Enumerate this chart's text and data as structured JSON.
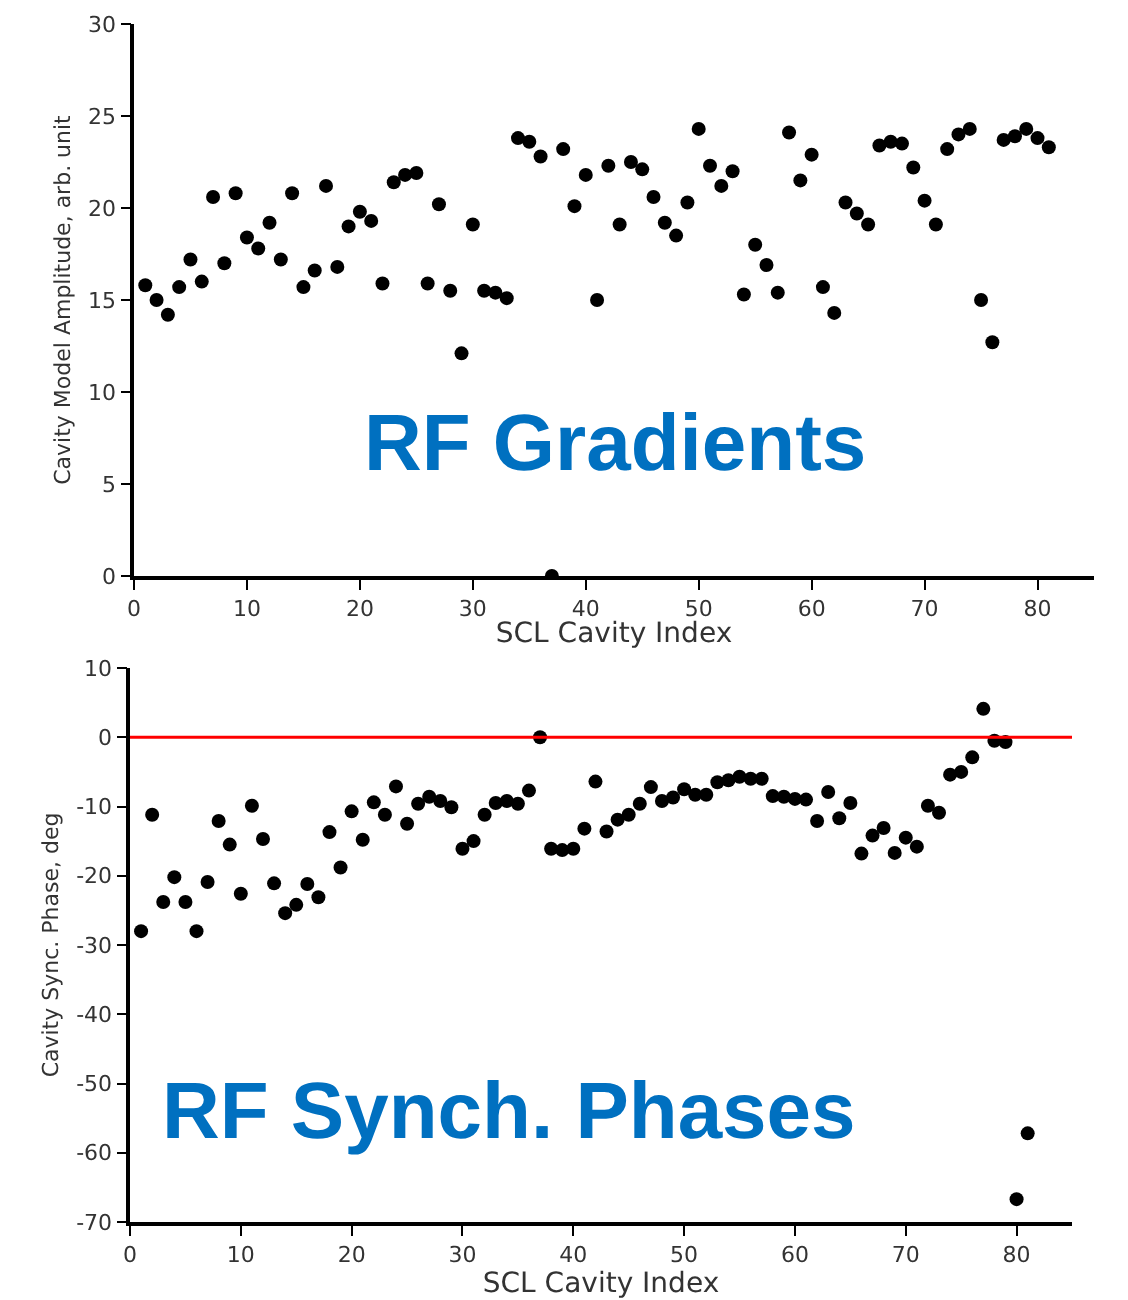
{
  "chart_data": [
    {
      "type": "scatter",
      "xlabel": "SCL Cavity Index",
      "ylabel": "Cavity Model Amplitude, arb. unit",
      "annotations": [
        "RF Gradients"
      ],
      "x": [
        1,
        2,
        3,
        4,
        5,
        6,
        7,
        8,
        9,
        10,
        11,
        12,
        13,
        14,
        15,
        16,
        17,
        18,
        19,
        20,
        21,
        22,
        23,
        24,
        25,
        26,
        27,
        28,
        29,
        30,
        31,
        32,
        33,
        34,
        35,
        36,
        37,
        38,
        39,
        40,
        41,
        42,
        43,
        44,
        45,
        46,
        47,
        48,
        49,
        50,
        51,
        52,
        53,
        54,
        55,
        56,
        57,
        58,
        59,
        60,
        61,
        62,
        63,
        64,
        65,
        66,
        67,
        68,
        69,
        70,
        71,
        72,
        73,
        74,
        75,
        76,
        77,
        78,
        79,
        80,
        81
      ],
      "series": [
        {
          "color": "#000000",
          "values": [
            15.8,
            15.0,
            14.2,
            15.7,
            17.2,
            16.0,
            20.6,
            17.0,
            20.8,
            18.4,
            17.8,
            19.2,
            17.2,
            20.8,
            15.7,
            16.6,
            21.2,
            16.8,
            19.0,
            19.8,
            19.3,
            15.9,
            21.4,
            21.8,
            21.9,
            15.9,
            20.2,
            15.5,
            12.1,
            19.1,
            15.5,
            15.4,
            15.1,
            23.8,
            23.6,
            22.8,
            0,
            23.2,
            20.1,
            21.8,
            15.0,
            22.3,
            19.1,
            22.5,
            22.1,
            20.6,
            19.2,
            18.5,
            20.3,
            24.3,
            22.3,
            21.2,
            22.0,
            15.3,
            18.0,
            16.9,
            15.4,
            24.1,
            21.5,
            22.9,
            15.7,
            14.3,
            20.3,
            19.7,
            19.1,
            23.4,
            23.6,
            23.5,
            22.2,
            20.4,
            19.1,
            23.2,
            24.0,
            24.3,
            15.0,
            12.7,
            23.7,
            23.9,
            24.3,
            23.8,
            23.3
          ]
        }
      ],
      "xlim": [
        0,
        85
      ],
      "xticks": [
        0,
        10,
        20,
        30,
        40,
        50,
        60,
        70,
        80
      ],
      "ylim": [
        0,
        30
      ],
      "yticks": [
        0,
        5,
        10,
        15,
        20,
        25,
        30
      ],
      "grid": false,
      "marker": "circle"
    },
    {
      "type": "scatter",
      "xlabel": "SCL Cavity Index",
      "ylabel": "Cavity Sync. Phase, deg",
      "annotations": [
        "RF Synch. Phases"
      ],
      "x": [
        1,
        2,
        3,
        4,
        5,
        6,
        7,
        8,
        9,
        10,
        11,
        12,
        13,
        14,
        15,
        16,
        17,
        18,
        19,
        20,
        21,
        22,
        23,
        24,
        25,
        26,
        27,
        28,
        29,
        30,
        31,
        32,
        33,
        34,
        35,
        36,
        37,
        38,
        39,
        40,
        41,
        42,
        43,
        44,
        45,
        46,
        47,
        48,
        49,
        50,
        51,
        52,
        53,
        54,
        55,
        56,
        57,
        58,
        59,
        60,
        61,
        62,
        63,
        64,
        65,
        66,
        67,
        68,
        69,
        70,
        71,
        72,
        73,
        74,
        75,
        76,
        77,
        78,
        79,
        80,
        81
      ],
      "series": [
        {
          "color": "#000000",
          "values": [
            -28.0,
            -11.2,
            -23.8,
            -20.2,
            -23.8,
            -28.0,
            -20.9,
            -12.1,
            -15.5,
            -22.6,
            -9.9,
            -14.7,
            -21.1,
            -25.4,
            -24.2,
            -21.2,
            -23.1,
            -13.7,
            -18.8,
            -10.7,
            -14.8,
            -9.4,
            -11.2,
            -7.1,
            -12.5,
            -9.6,
            -8.6,
            -9.2,
            -10.1,
            -16.1,
            -15.0,
            -11.2,
            -9.5,
            -9.2,
            -9.6,
            -7.7,
            0,
            -16.1,
            -16.3,
            -16.1,
            -13.2,
            -6.4,
            -13.6,
            -11.9,
            -11.2,
            -9.6,
            -7.2,
            -9.2,
            -8.7,
            -7.5,
            -8.3,
            -8.3,
            -6.5,
            -6.2,
            -5.7,
            -6.0,
            -6.0,
            -8.5,
            -8.6,
            -8.9,
            -9.0,
            -12.1,
            -7.9,
            -11.7,
            -9.5,
            -16.8,
            -14.2,
            -13.1,
            -16.7,
            -14.5,
            -15.8,
            -9.9,
            -10.9,
            -5.4,
            -5.0,
            -2.9,
            4.1,
            -0.5,
            -0.7,
            -66.7,
            -57.2
          ]
        }
      ],
      "xlim": [
        0,
        85
      ],
      "xticks": [
        0,
        10,
        20,
        30,
        40,
        50,
        60,
        70,
        80
      ],
      "ylim": [
        -70,
        10
      ],
      "yticks": [
        -70,
        -60,
        -50,
        -40,
        -30,
        -20,
        -10,
        0,
        10
      ],
      "grid": false,
      "marker": "circle",
      "ref_lines": [
        {
          "axis": "y",
          "value": 0,
          "color": "#ff0000",
          "line_style": "solid"
        }
      ]
    }
  ]
}
